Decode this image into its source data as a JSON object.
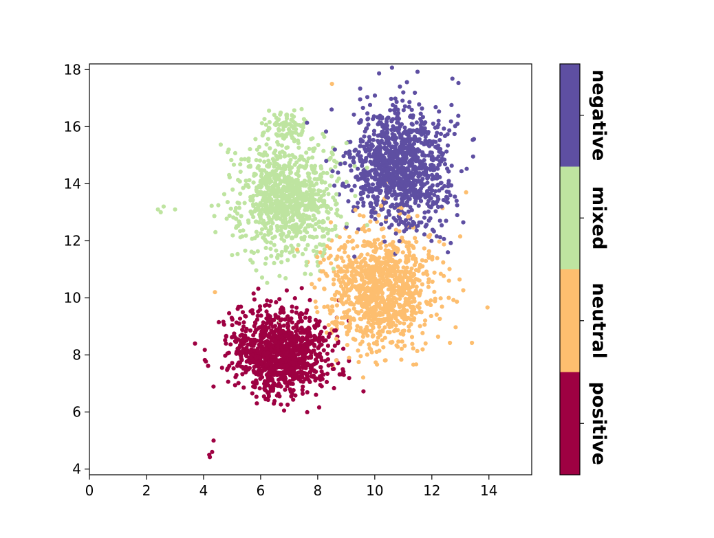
{
  "chart_data": {
    "type": "scatter",
    "title": "",
    "xlabel": "",
    "ylabel": "",
    "xlim": [
      0,
      15.5
    ],
    "ylim": [
      3.8,
      18.2
    ],
    "xticks": [
      0,
      2,
      4,
      6,
      8,
      10,
      12,
      14
    ],
    "yticks": [
      4,
      6,
      8,
      10,
      12,
      14,
      16,
      18
    ],
    "grid": false,
    "legend": "colorbar-right",
    "colors": {
      "positive": "#9e0142",
      "neutral": "#fdbe6f",
      "mixed": "#bee4a0",
      "negative": "#5e4fa2"
    },
    "series": [
      {
        "name": "negative",
        "clusters": [
          {
            "cx": 10.9,
            "cy": 14.6,
            "sx": 0.82,
            "sy": 1.05,
            "n": 1100
          }
        ],
        "sample_points": [
          [
            8.6,
            15.2
          ],
          [
            12.9,
            16.1
          ],
          [
            8.3,
            14.8
          ],
          [
            11.0,
            17.2
          ],
          [
            12.5,
            12.7
          ]
        ]
      },
      {
        "name": "mixed",
        "clusters": [
          {
            "cx": 6.9,
            "cy": 13.5,
            "sx": 0.85,
            "sy": 1.05,
            "n": 900
          },
          {
            "cx": 6.9,
            "cy": 16.0,
            "sx": 0.35,
            "sy": 0.25,
            "n": 70
          }
        ],
        "sample_points": [
          [
            2.4,
            13.1
          ],
          [
            2.6,
            13.2
          ],
          [
            3.0,
            13.1
          ],
          [
            2.5,
            13.0
          ],
          [
            5.0,
            11.5
          ]
        ]
      },
      {
        "name": "neutral",
        "clusters": [
          {
            "cx": 10.2,
            "cy": 10.3,
            "sx": 0.95,
            "sy": 1.0,
            "n": 1050
          }
        ],
        "sample_points": [
          [
            8.5,
            17.5
          ],
          [
            13.2,
            13.7
          ],
          [
            9.1,
            7.9
          ],
          [
            4.4,
            10.2
          ],
          [
            12.6,
            10.6
          ]
        ]
      },
      {
        "name": "positive",
        "clusters": [
          {
            "cx": 6.7,
            "cy": 8.1,
            "sx": 0.85,
            "sy": 0.75,
            "n": 1050
          }
        ],
        "sample_points": [
          [
            4.2,
            4.5
          ],
          [
            4.3,
            4.6
          ],
          [
            4.35,
            5.0
          ],
          [
            4.22,
            4.42
          ],
          [
            3.7,
            8.4
          ]
        ]
      }
    ],
    "colorbar": {
      "labels": [
        "positive",
        "neutral",
        "mixed",
        "negative"
      ]
    }
  }
}
